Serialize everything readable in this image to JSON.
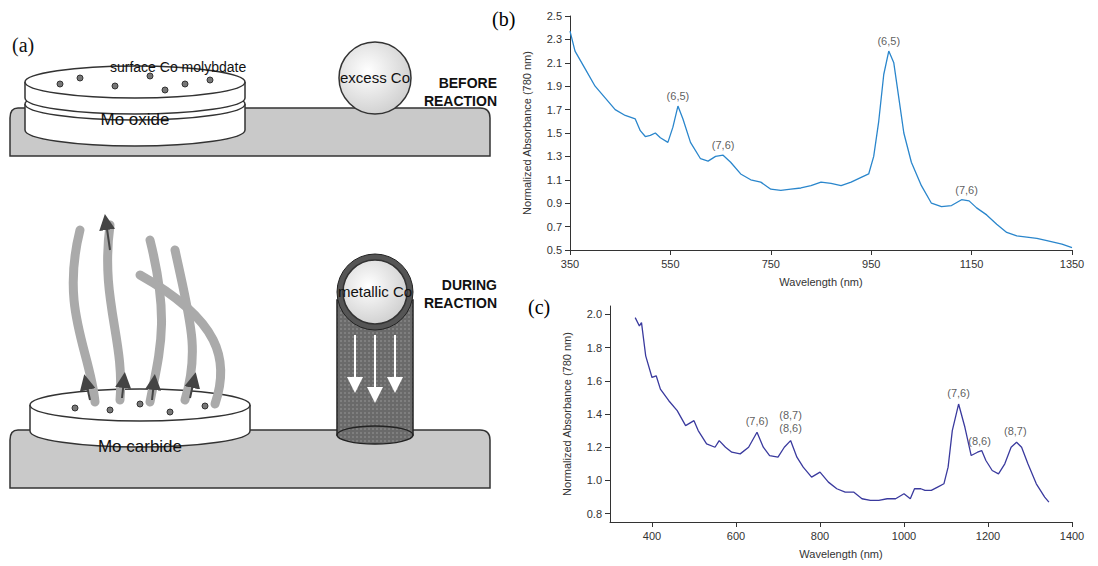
{
  "diagram": {
    "panel_label": "(a)",
    "before": {
      "stage": "BEFORE REACTION",
      "surface": "surface Co molybdate",
      "support": "Mo oxide",
      "particle": "excess Co"
    },
    "during": {
      "stage": "DURING REACTION",
      "support": "Mo carbide",
      "particle": "metallic Co"
    }
  },
  "chart_data": [
    {
      "type": "line",
      "panel_label": "(b)",
      "color": "#2a86cc",
      "grid": false,
      "xlabel": "Wavelength (nm)",
      "ylabel": "Normalized Absorbance (780 nm)",
      "xlim": [
        350,
        1350
      ],
      "xticks": [
        350,
        550,
        750,
        950,
        1150,
        1350
      ],
      "ylim": [
        0.5,
        2.5
      ],
      "yticks": [
        0.5,
        0.7,
        0.9,
        1.1,
        1.3,
        1.5,
        1.7,
        1.9,
        2.1,
        2.3,
        2.5
      ],
      "x": [
        350,
        360,
        380,
        400,
        420,
        440,
        460,
        480,
        490,
        500,
        510,
        520,
        530,
        545,
        555,
        565,
        575,
        590,
        610,
        625,
        640,
        655,
        670,
        690,
        710,
        730,
        750,
        770,
        790,
        810,
        830,
        850,
        870,
        890,
        910,
        930,
        945,
        955,
        965,
        975,
        985,
        995,
        1005,
        1015,
        1030,
        1050,
        1070,
        1090,
        1110,
        1130,
        1145,
        1160,
        1180,
        1200,
        1220,
        1240,
        1260,
        1280,
        1300,
        1330,
        1350
      ],
      "values": [
        2.37,
        2.2,
        2.05,
        1.9,
        1.8,
        1.7,
        1.65,
        1.62,
        1.52,
        1.47,
        1.48,
        1.5,
        1.46,
        1.42,
        1.55,
        1.73,
        1.62,
        1.42,
        1.28,
        1.26,
        1.3,
        1.31,
        1.25,
        1.15,
        1.1,
        1.08,
        1.02,
        1.01,
        1.02,
        1.03,
        1.05,
        1.08,
        1.07,
        1.05,
        1.08,
        1.12,
        1.15,
        1.3,
        1.6,
        2.0,
        2.2,
        2.1,
        1.8,
        1.5,
        1.25,
        1.05,
        0.9,
        0.87,
        0.88,
        0.93,
        0.92,
        0.86,
        0.8,
        0.72,
        0.65,
        0.62,
        0.61,
        0.6,
        0.58,
        0.55,
        0.52
      ],
      "annotations": [
        {
          "x": 565,
          "y": 1.75,
          "text": "(6,5)"
        },
        {
          "x": 655,
          "y": 1.33,
          "text": "(7,6)"
        },
        {
          "x": 985,
          "y": 2.22,
          "text": "(6,5)"
        },
        {
          "x": 1140,
          "y": 0.95,
          "text": "(7,6)"
        }
      ]
    },
    {
      "type": "line",
      "panel_label": "(c)",
      "color": "#3a3a9e",
      "grid": false,
      "xlabel": "Wavelength (nm)",
      "ylabel": "Normalized Absorbance (780 nm)",
      "xlim": [
        300,
        1400
      ],
      "xticks": [
        400,
        600,
        800,
        1000,
        1200,
        1400
      ],
      "ylim": [
        0.75,
        2.05
      ],
      "yticks": [
        0.8,
        {
          "value": 1,
          "label": "1.0"
        },
        1.2,
        1.4,
        1.6,
        1.8,
        {
          "value": 2,
          "label": "2.0"
        }
      ],
      "x": [
        360,
        370,
        375,
        385,
        400,
        410,
        420,
        440,
        460,
        480,
        500,
        510,
        530,
        550,
        560,
        575,
        590,
        610,
        630,
        650,
        665,
        680,
        700,
        715,
        730,
        745,
        760,
        780,
        800,
        820,
        840,
        860,
        880,
        900,
        920,
        940,
        960,
        980,
        1000,
        1015,
        1025,
        1040,
        1050,
        1065,
        1080,
        1095,
        1105,
        1115,
        1130,
        1145,
        1160,
        1175,
        1185,
        1195,
        1210,
        1225,
        1240,
        1255,
        1268,
        1280,
        1295,
        1315,
        1335,
        1345
      ],
      "values": [
        1.98,
        1.93,
        1.95,
        1.75,
        1.62,
        1.63,
        1.55,
        1.48,
        1.42,
        1.33,
        1.36,
        1.3,
        1.22,
        1.2,
        1.24,
        1.2,
        1.17,
        1.16,
        1.2,
        1.29,
        1.2,
        1.15,
        1.14,
        1.2,
        1.24,
        1.14,
        1.08,
        1.02,
        1.05,
        0.99,
        0.95,
        0.93,
        0.93,
        0.89,
        0.88,
        0.88,
        0.89,
        0.89,
        0.92,
        0.89,
        0.95,
        0.95,
        0.94,
        0.94,
        0.96,
        0.98,
        1.08,
        1.3,
        1.46,
        1.32,
        1.15,
        1.17,
        1.18,
        1.12,
        1.06,
        1.04,
        1.1,
        1.2,
        1.23,
        1.2,
        1.1,
        0.98,
        0.9,
        0.87
      ],
      "annotations": [
        {
          "x": 650,
          "y": 1.31,
          "text": "(7,6)"
        },
        {
          "x": 730,
          "y": 1.35,
          "text": "(8,7)"
        },
        {
          "x": 730,
          "y": 1.27,
          "text": "(8,6)"
        },
        {
          "x": 1130,
          "y": 1.48,
          "text": "(7,6)"
        },
        {
          "x": 1180,
          "y": 1.19,
          "text": "(8,6)"
        },
        {
          "x": 1265,
          "y": 1.25,
          "text": "(8,7)"
        }
      ]
    }
  ]
}
